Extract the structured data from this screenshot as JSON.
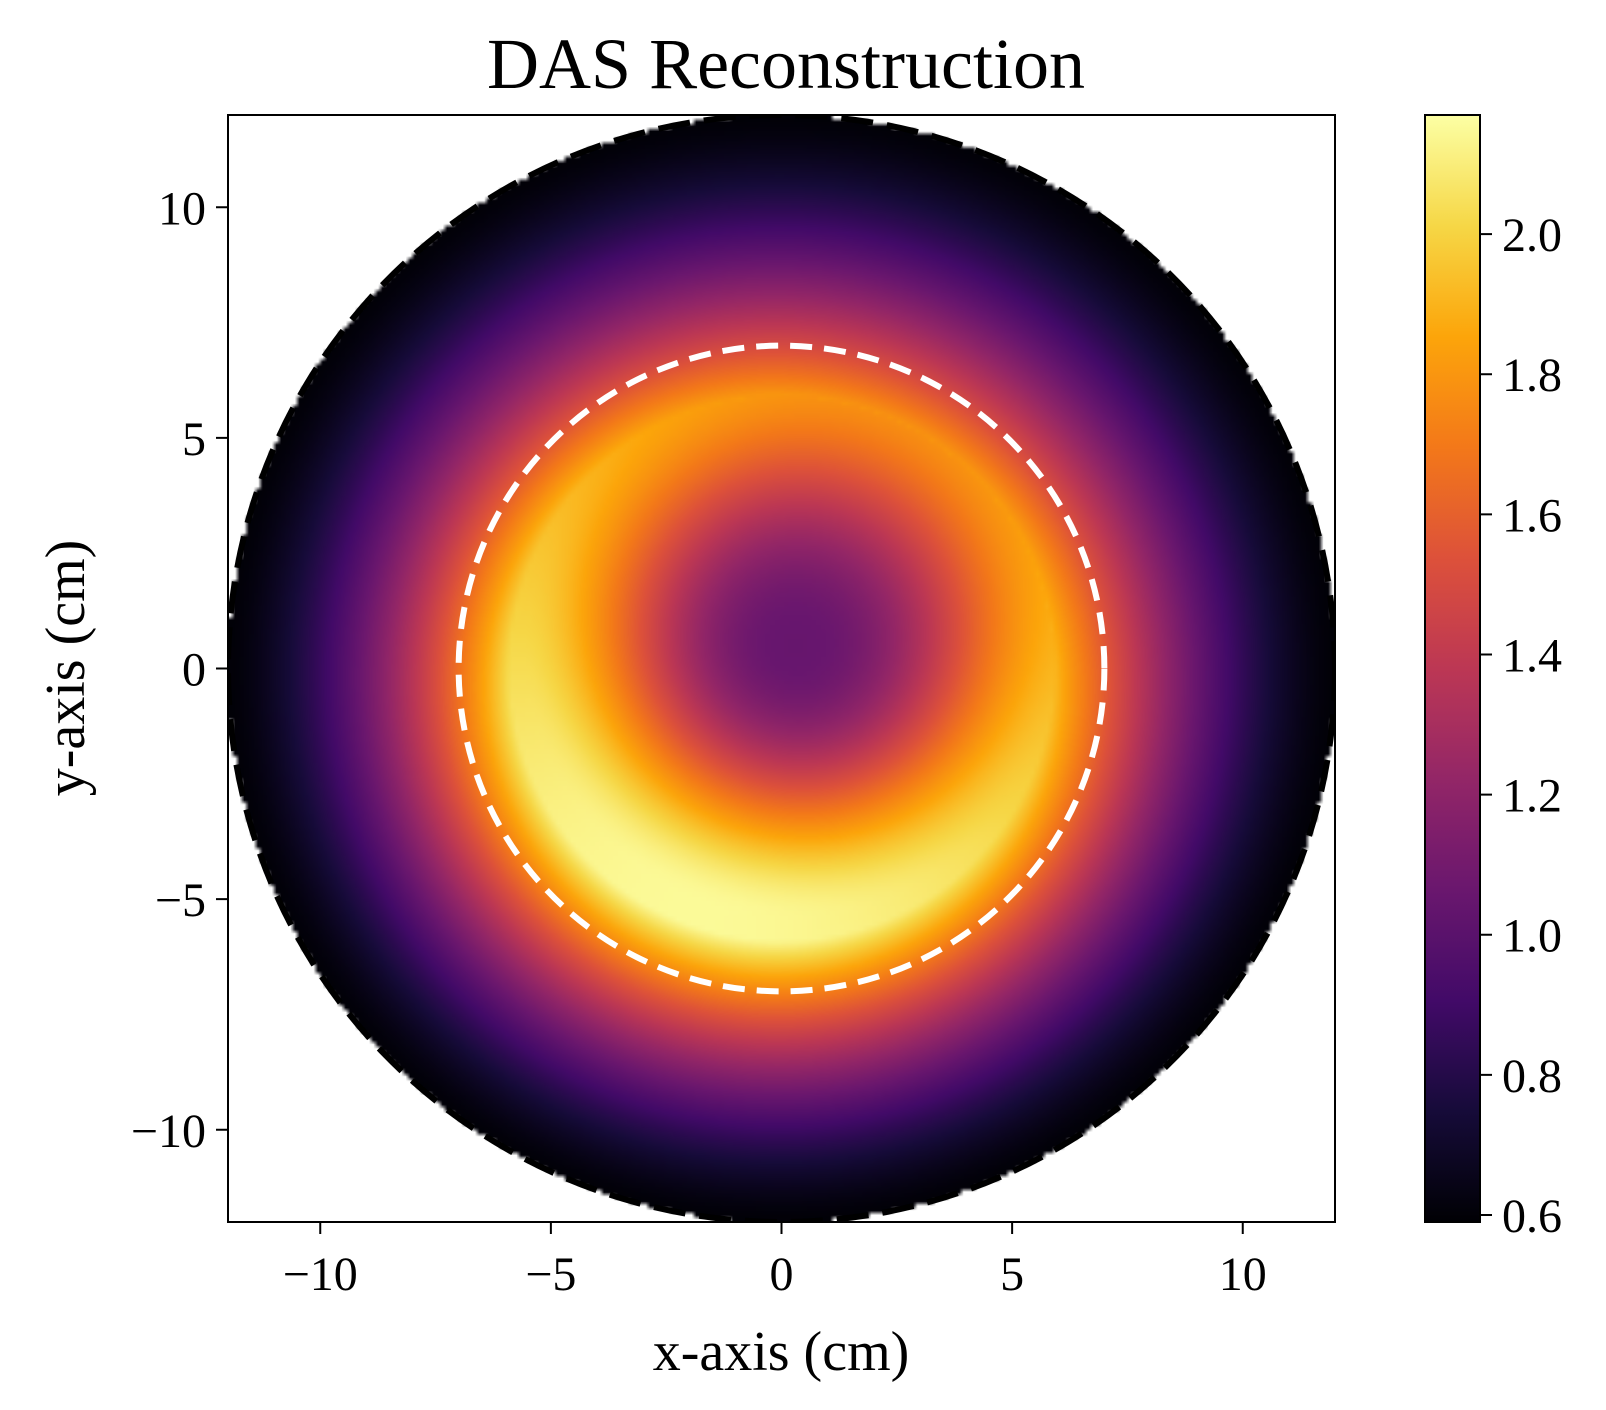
{
  "chart_data": {
    "type": "heatmap",
    "title": "DAS Reconstruction",
    "xlabel": "x-axis (cm)",
    "ylabel": "y-axis (cm)",
    "xlim": [
      -12,
      12
    ],
    "ylim": [
      -12,
      12
    ],
    "x_ticks": [
      -10,
      -5,
      0,
      5,
      10
    ],
    "y_ticks": [
      10,
      5,
      0,
      -5,
      -10
    ],
    "x_tick_labels": [
      "−10",
      "−5",
      "0",
      "5",
      "10"
    ],
    "y_tick_labels": [
      "10",
      "5",
      "0",
      "−5",
      "−10"
    ],
    "colormap": "inferno",
    "colorbar": {
      "min": 0.59,
      "max": 2.17,
      "ticks": [
        0.6,
        0.8,
        1.0,
        1.2,
        1.4,
        1.6,
        1.8,
        2.0
      ],
      "tick_labels": [
        "0.6",
        "0.8",
        "1.0",
        "1.2",
        "1.4",
        "1.6",
        "1.8",
        "2.0"
      ]
    },
    "field": {
      "domain_radius_cm": 12,
      "edge_value": 0.6,
      "ring_radius_cm": 5.9,
      "ring_peak_value": 2.15,
      "ring_peak_angle_deg": -110,
      "ring_weakest_value": 1.8,
      "center_value": 1.05,
      "center_offset_cm": [
        0.3,
        0.5
      ]
    },
    "overlays": [
      {
        "type": "circle",
        "center": [
          0,
          0
        ],
        "radius_cm": 7,
        "color": "#ffffff",
        "style": "dashed"
      },
      {
        "type": "circle",
        "center": [
          0,
          0
        ],
        "radius_cm": 12,
        "color": "#000000",
        "style": "dashed"
      }
    ]
  }
}
